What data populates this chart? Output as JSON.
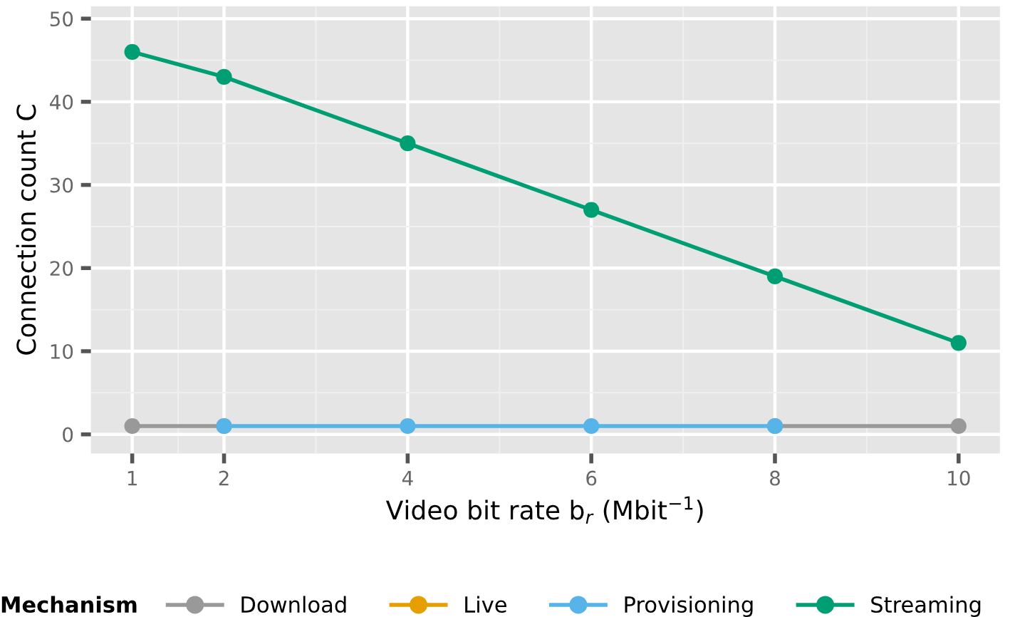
{
  "chart_data": {
    "type": "line",
    "xlabel": "Video bit rate b$_{r}$ (Mbit$^{−1}$)",
    "ylabel": "Connection count C",
    "legend_title": "Mechanism",
    "x": [
      1,
      2,
      4,
      6,
      8,
      10
    ],
    "series": [
      {
        "name": "Download",
        "color": "#999999",
        "values": [
          1,
          1,
          null,
          null,
          1,
          1
        ]
      },
      {
        "name": "Live",
        "color": "#e69f00",
        "values": [
          null,
          null,
          null,
          null,
          null,
          null
        ]
      },
      {
        "name": "Provisioning",
        "color": "#56b4e9",
        "values": [
          null,
          1,
          1,
          1,
          1,
          null
        ]
      },
      {
        "name": "Streaming",
        "color": "#009e73",
        "values": [
          46,
          43,
          35,
          27,
          19,
          11
        ]
      }
    ],
    "xlim": [
      0.55,
      10.45
    ],
    "ylim": [
      -2.3,
      51.5
    ],
    "xticks": [
      1,
      2,
      4,
      6,
      8,
      10
    ],
    "yticks": [
      0,
      10,
      20,
      30,
      40,
      50
    ],
    "grid": true,
    "legend": "bottom",
    "marker": "circle",
    "line_style": "solid"
  }
}
